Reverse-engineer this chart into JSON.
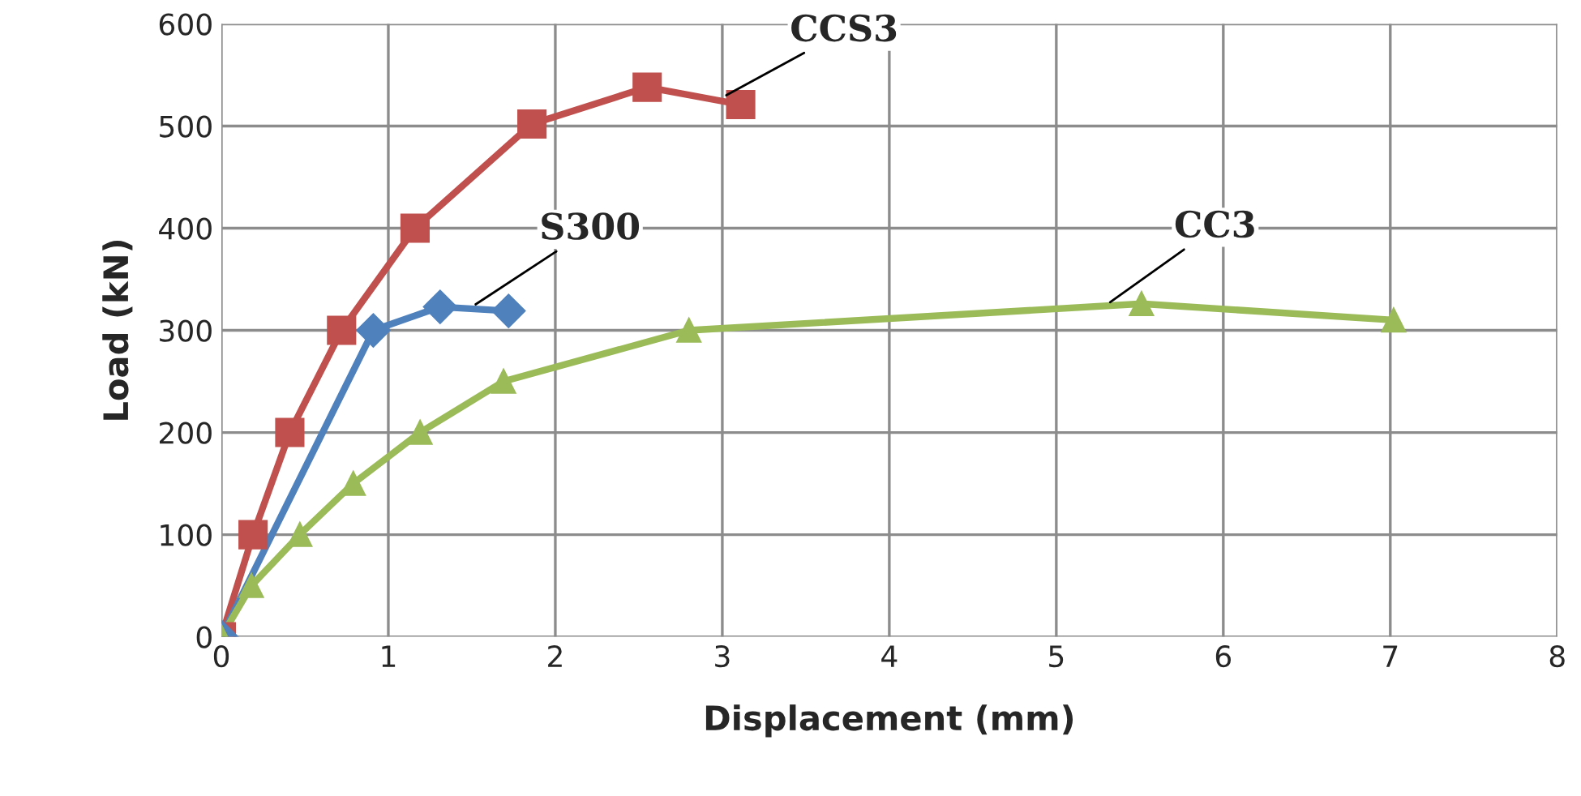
{
  "chart_data": {
    "type": "line",
    "xlabel": "Displacement (mm)",
    "ylabel": "Load (kN)",
    "xlim": [
      0,
      8
    ],
    "xticks": [
      0,
      1,
      2,
      3,
      4,
      5,
      6,
      7,
      8
    ],
    "ylim": [
      0,
      600
    ],
    "yticks": [
      0,
      100,
      200,
      300,
      400,
      500,
      600
    ],
    "grid": true,
    "legend": false,
    "series": [
      {
        "color": "#c0504d",
        "marker": "square",
        "x": [
          0,
          0.19,
          0.41,
          0.72,
          1.16,
          1.86,
          2.55,
          3.11
        ],
        "values": [
          0,
          100,
          200,
          300,
          400,
          502,
          538,
          521
        ]
      },
      {
        "color": "#4f81bd",
        "marker": "diamond",
        "x": [
          0,
          0.91,
          1.31,
          1.72
        ],
        "values": [
          0,
          300,
          323,
          319
        ]
      },
      {
        "color": "#9bbb59",
        "marker": "triangle",
        "x": [
          0,
          0.18,
          0.47,
          0.79,
          1.19,
          1.69,
          2.8,
          5.51,
          7.02
        ],
        "values": [
          0,
          50,
          100,
          150,
          200,
          250,
          300,
          326,
          310
        ]
      }
    ],
    "annotations": [
      {
        "text": "CCS3",
        "x": 3.0,
        "y": 528
      },
      {
        "text": "S300",
        "x": 1.5,
        "y": 323
      },
      {
        "text": "CC3",
        "x": 5.3,
        "y": 325
      }
    ]
  }
}
